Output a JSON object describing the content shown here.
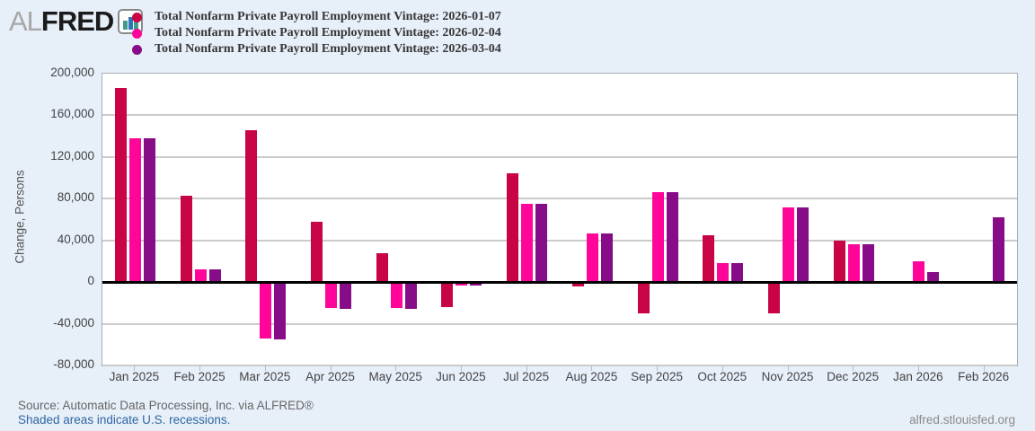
{
  "logo": {
    "al": "AL",
    "fred": "FRED"
  },
  "colors": {
    "background": "#E7EFF9",
    "plot_background": "#FFFFFF",
    "gridline": "#CBCBCB",
    "zero_line": "#000000",
    "logo_icon_teal": "#3E9C8B",
    "logo_icon_blue": "#2E75B5",
    "series_1": "#C80445",
    "series_2": "#FF0599",
    "series_3": "#870C87"
  },
  "chart_data": {
    "type": "bar",
    "title": "",
    "xlabel": "",
    "ylabel": "Change, Persons",
    "ylim": [
      -80000,
      200000
    ],
    "ytick_step": 40000,
    "ytick_labels": [
      "200,000",
      "160,000",
      "120,000",
      "80,000",
      "40,000",
      "0",
      "-40,000",
      "-80,000"
    ],
    "grid": true,
    "legend_position": "top",
    "categories": [
      "Jan 2025",
      "Feb 2025",
      "Mar 2025",
      "Apr 2025",
      "May 2025",
      "Jun 2025",
      "Jul 2025",
      "Aug 2025",
      "Sep 2025",
      "Oct 2025",
      "Nov 2025",
      "Dec 2025",
      "Jan 2026",
      "Feb 2026"
    ],
    "series": [
      {
        "name": "Total Nonfarm Private Payroll Employment Vintage: 2026-01-07",
        "color": "#C80445",
        "values": [
          186000,
          83000,
          146000,
          58000,
          28000,
          -24000,
          104000,
          -4000,
          -30000,
          45000,
          -30000,
          40000,
          null,
          null
        ]
      },
      {
        "name": "Total Nonfarm Private Payroll Employment Vintage: 2026-02-04",
        "color": "#FF0599",
        "values": [
          138000,
          12000,
          -54000,
          -25000,
          -25000,
          -3000,
          75000,
          47000,
          86000,
          18000,
          72000,
          36000,
          20000,
          null
        ]
      },
      {
        "name": "Total Nonfarm Private Payroll Employment Vintage: 2026-03-04",
        "color": "#870C87",
        "values": [
          138000,
          12000,
          -55000,
          -26000,
          -26000,
          -3000,
          75000,
          47000,
          86000,
          18000,
          72000,
          36000,
          10000,
          62000
        ]
      }
    ]
  },
  "footer": {
    "source": "Source: Automatic Data Processing, Inc. via ALFRED®",
    "recessions_note": "Shaded areas indicate U.S. recessions.",
    "site": "alfred.stlouisfed.org"
  }
}
